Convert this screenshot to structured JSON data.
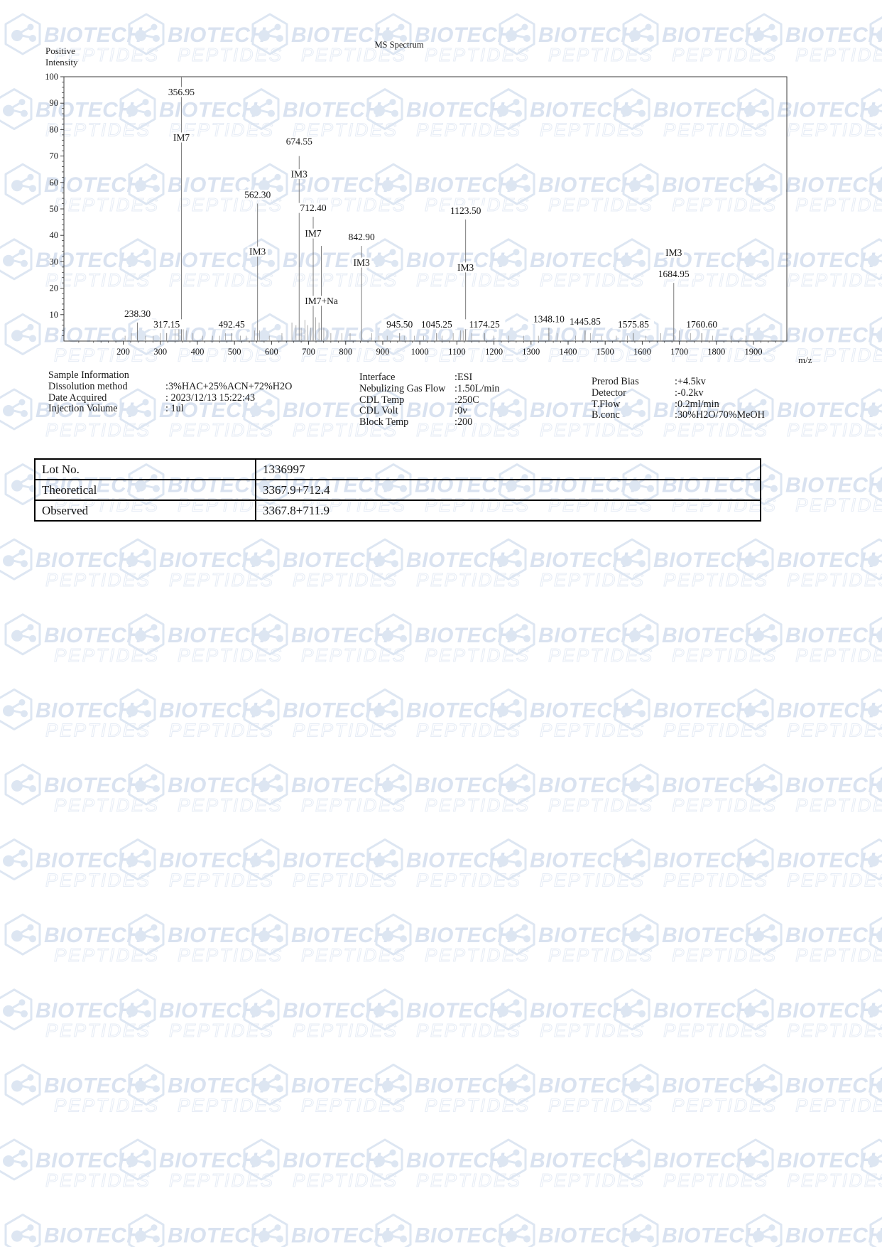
{
  "chart": {
    "title": "MS Spectrum",
    "y_axis_caption": [
      "Positive",
      "Intensity"
    ],
    "x_axis_caption": "m/z"
  },
  "chart_data": {
    "type": "bar",
    "subtype": "mass-spectrum-stick-plot",
    "title": "MS Spectrum",
    "xlabel": "m/z",
    "ylabel": "Positive Intensity",
    "xlim": [
      40,
      1990
    ],
    "ylim": [
      0,
      100
    ],
    "x_ticks": [
      200,
      300,
      400,
      500,
      600,
      700,
      800,
      900,
      1000,
      1100,
      1200,
      1300,
      1400,
      1500,
      1600,
      1700,
      1800,
      1900
    ],
    "y_ticks": [
      10,
      20,
      30,
      40,
      50,
      60,
      70,
      80,
      90,
      100
    ],
    "grid": false,
    "legend": "none",
    "peaks": [
      {
        "mz": 238.3,
        "intensity": 7,
        "label": "238.30"
      },
      {
        "mz": 317.15,
        "intensity": 3,
        "label": "317.15"
      },
      {
        "mz": 356.95,
        "intensity": 100,
        "label": "356.95",
        "ion": "IM7",
        "clamp": true
      },
      {
        "mz": 492.45,
        "intensity": 3,
        "label": "492.45"
      },
      {
        "mz": 562.3,
        "intensity": 52,
        "label": "562.30",
        "ion": "IM3",
        "idy": 44
      },
      {
        "mz": 674.55,
        "intensity": 70,
        "label": "674.55",
        "ion": "IM3",
        "ldy": -8,
        "idy": 10
      },
      {
        "mz": 712.4,
        "intensity": 47,
        "label": "712.40",
        "ion": "IM7"
      },
      {
        "mz": 734.4,
        "intensity": 36,
        "label": "",
        "ion": "IM7+Na"
      },
      {
        "mz": 842.9,
        "intensity": 36,
        "label": "842.90",
        "ion": "IM3"
      },
      {
        "mz": 945.5,
        "intensity": 3,
        "label": "945.50"
      },
      {
        "mz": 1045.25,
        "intensity": 3,
        "label": "1045.25"
      },
      {
        "mz": 1123.5,
        "intensity": 46,
        "label": "1123.50",
        "ion": "IM3",
        "idy": 44
      },
      {
        "mz": 1174.25,
        "intensity": 3,
        "label": "1174.25"
      },
      {
        "mz": 1348.1,
        "intensity": 5,
        "label": "1348.10"
      },
      {
        "mz": 1445.85,
        "intensity": 4,
        "label": "1445.85"
      },
      {
        "mz": 1575.85,
        "intensity": 3,
        "label": "1575.85"
      },
      {
        "mz": 1684.95,
        "intensity": 22,
        "label": "1684.95",
        "ion": "IM3",
        "ion_above": true
      },
      {
        "mz": 1760.6,
        "intensity": 3,
        "label": "1760.60"
      }
    ],
    "unlabeled_minor_peaks": [
      {
        "mz": 205,
        "intensity": 2
      },
      {
        "mz": 222,
        "intensity": 3
      },
      {
        "mz": 260,
        "intensity": 2
      },
      {
        "mz": 281,
        "intensity": 2
      },
      {
        "mz": 300,
        "intensity": 3
      },
      {
        "mz": 340,
        "intensity": 5
      },
      {
        "mz": 350,
        "intensity": 6
      },
      {
        "mz": 362,
        "intensity": 5
      },
      {
        "mz": 371,
        "intensity": 4
      },
      {
        "mz": 388,
        "intensity": 3
      },
      {
        "mz": 414,
        "intensity": 2
      },
      {
        "mz": 441,
        "intensity": 2
      },
      {
        "mz": 460,
        "intensity": 2
      },
      {
        "mz": 476,
        "intensity": 3
      },
      {
        "mz": 516,
        "intensity": 2
      },
      {
        "mz": 532,
        "intensity": 2
      },
      {
        "mz": 554,
        "intensity": 4
      },
      {
        "mz": 568,
        "intensity": 4
      },
      {
        "mz": 594,
        "intensity": 2
      },
      {
        "mz": 628,
        "intensity": 3
      },
      {
        "mz": 655,
        "intensity": 7
      },
      {
        "mz": 666,
        "intensity": 6
      },
      {
        "mz": 680,
        "intensity": 5
      },
      {
        "mz": 690,
        "intensity": 8
      },
      {
        "mz": 698,
        "intensity": 6
      },
      {
        "mz": 706,
        "intensity": 5
      },
      {
        "mz": 719,
        "intensity": 9
      },
      {
        "mz": 728,
        "intensity": 7
      },
      {
        "mz": 741,
        "intensity": 5
      },
      {
        "mz": 750,
        "intensity": 4
      },
      {
        "mz": 760,
        "intensity": 3
      },
      {
        "mz": 790,
        "intensity": 3
      },
      {
        "mz": 812,
        "intensity": 3
      },
      {
        "mz": 870,
        "intensity": 3
      },
      {
        "mz": 890,
        "intensity": 2
      },
      {
        "mz": 912,
        "intensity": 2
      },
      {
        "mz": 958,
        "intensity": 2
      },
      {
        "mz": 985,
        "intensity": 2
      },
      {
        "mz": 1010,
        "intensity": 2
      },
      {
        "mz": 1060,
        "intensity": 2
      },
      {
        "mz": 1090,
        "intensity": 3
      },
      {
        "mz": 1110,
        "intensity": 4
      },
      {
        "mz": 1117,
        "intensity": 4
      },
      {
        "mz": 1140,
        "intensity": 3
      },
      {
        "mz": 1200,
        "intensity": 2
      },
      {
        "mz": 1240,
        "intensity": 2
      },
      {
        "mz": 1280,
        "intensity": 2
      },
      {
        "mz": 1320,
        "intensity": 2
      },
      {
        "mz": 1370,
        "intensity": 3
      },
      {
        "mz": 1420,
        "intensity": 2
      },
      {
        "mz": 1460,
        "intensity": 3
      },
      {
        "mz": 1490,
        "intensity": 2
      },
      {
        "mz": 1530,
        "intensity": 2
      },
      {
        "mz": 1560,
        "intensity": 2
      },
      {
        "mz": 1610,
        "intensity": 2
      },
      {
        "mz": 1650,
        "intensity": 3
      },
      {
        "mz": 1700,
        "intensity": 4
      },
      {
        "mz": 1730,
        "intensity": 3
      },
      {
        "mz": 1790,
        "intensity": 2
      },
      {
        "mz": 1840,
        "intensity": 2
      },
      {
        "mz": 1880,
        "intensity": 2
      }
    ]
  },
  "info": {
    "columns": [
      {
        "header": "Sample Information",
        "rows": [
          {
            "label": "Dissolution method",
            "value": ":3%HAC+25%ACN+72%H2O"
          },
          {
            "label": "Date Acquired",
            "value": ": 2023/12/13 15:22:43"
          },
          {
            "label": "Injection Volume",
            "value": ": 1ul"
          }
        ]
      },
      {
        "header": "",
        "rows": [
          {
            "label": "Interface",
            "value": ":ESI"
          },
          {
            "label": "Nebulizing Gas Flow",
            "value": ":1.50L/min"
          },
          {
            "label": "CDL Temp",
            "value": ":250C"
          },
          {
            "label": "CDL Volt",
            "value": ":0v"
          },
          {
            "label": "Block Temp",
            "value": ":200"
          }
        ]
      },
      {
        "header": "",
        "rows": [
          {
            "label": "Prerod Bias",
            "value": ":+4.5kv"
          },
          {
            "label": "Detector",
            "value": ":-0.2kv"
          },
          {
            "label": "T.Flow",
            "value": ":0.2ml/min"
          },
          {
            "label": "B.conc",
            "value": ":30%H2O/70%MeOH"
          }
        ]
      }
    ]
  },
  "table": {
    "rows": [
      {
        "label": "Lot No.",
        "value": "1336997"
      },
      {
        "label": "Theoretical",
        "value": "3367.9+712.4"
      },
      {
        "label": "Observed",
        "value": "3367.8+711.9"
      }
    ]
  },
  "watermark": {
    "line1": "BIOTECH",
    "line2": "PEPTIDES",
    "color_primary": "#d9e2f0",
    "color_secondary": "#e7edf6",
    "color_icon": "#dde6f2"
  }
}
